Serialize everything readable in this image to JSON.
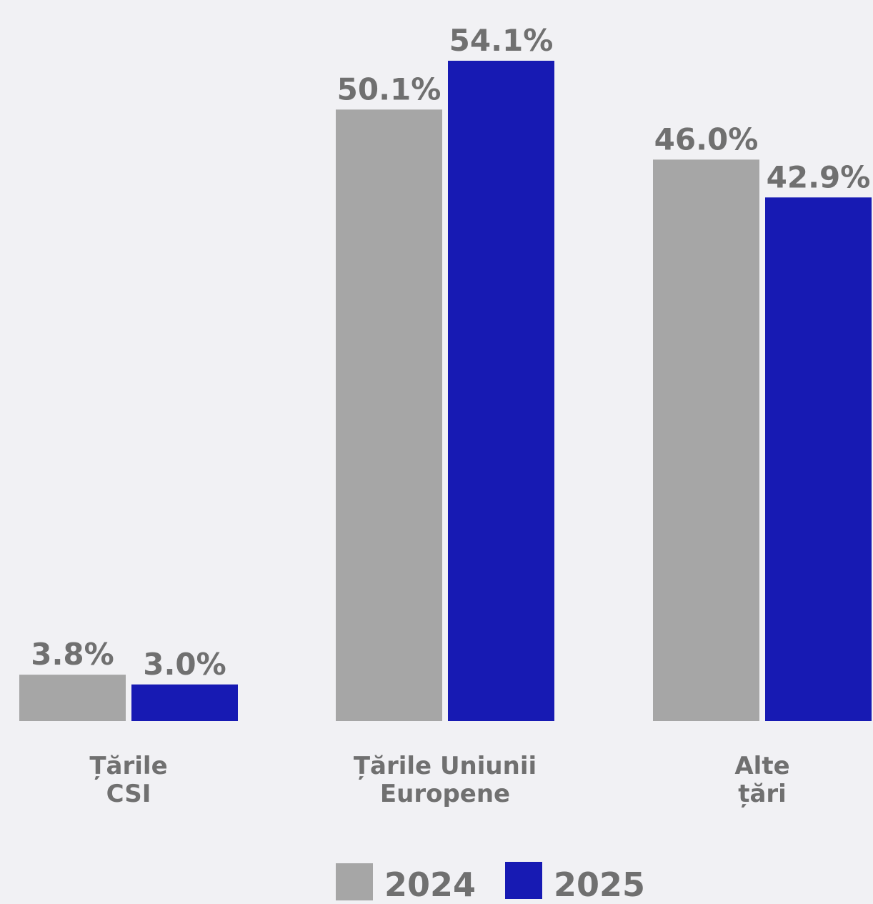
{
  "chart_data": {
    "type": "bar",
    "categories": [
      [
        "Țările",
        "CSI"
      ],
      [
        "Țările Uniunii",
        "Europene"
      ],
      [
        "Alte",
        "țări"
      ]
    ],
    "series": [
      {
        "name": "2024",
        "color": "#a6a6a6",
        "values": [
          3.8,
          50.1,
          46.0
        ],
        "labels": [
          "3.8%",
          "50.1%",
          "46.0%"
        ]
      },
      {
        "name": "2025",
        "color": "#171ab3",
        "values": [
          3.0,
          54.1,
          42.9
        ],
        "labels": [
          "3.0%",
          "54.1%",
          "42.9%"
        ]
      }
    ],
    "ylim": [
      0,
      54.1
    ],
    "grid": false,
    "legend": "bottom",
    "label_color": "#707070",
    "background": "#f1f1f4"
  }
}
